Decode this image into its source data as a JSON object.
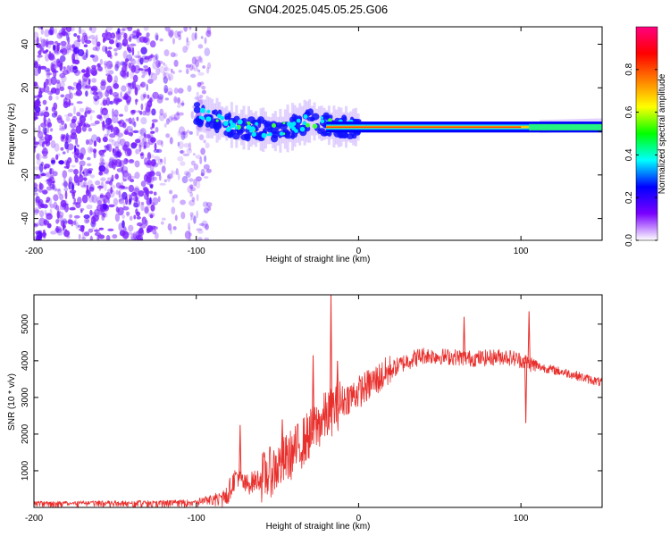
{
  "figure": {
    "title": "GN04.2025.045.05.25.G06"
  },
  "chart_data": [
    {
      "type": "heatmap",
      "title": "GN04.2025.045.05.25.G06",
      "xlabel": "Height of straight line (km)",
      "ylabel": "Frequency (Hz)",
      "xlim": [
        -200,
        150
      ],
      "ylim": [
        -50,
        48
      ],
      "x_ticks": [
        -200,
        -100,
        0,
        100
      ],
      "y_ticks": [
        -40,
        -20,
        0,
        20,
        40
      ],
      "colorbar": {
        "label": "Normalized spectral amplitude",
        "range": [
          0,
          1
        ],
        "ticks": [
          0.0,
          0.2,
          0.4,
          0.6,
          0.8
        ],
        "colormap": [
          "#ffffff",
          "#7a00ff",
          "#0000ff",
          "#00ffff",
          "#00ff00",
          "#ffff00",
          "#ff7f00",
          "#ff0000",
          "#ff0080"
        ]
      },
      "structure": {
        "noise_region_x": [
          -200,
          -100
        ],
        "noise_color": "#7a1fff",
        "signal_band": [
          {
            "x": -100,
            "freq": 8
          },
          {
            "x": -75,
            "freq": 2
          },
          {
            "x": -50,
            "freq": 0
          },
          {
            "x": -30,
            "freq": 5
          },
          {
            "x": -15,
            "freq": 2
          },
          {
            "x": 0,
            "freq": 2
          },
          {
            "x": 100,
            "freq": 2
          },
          {
            "x": 150,
            "freq": 3
          }
        ],
        "band_peak_color": "#ff0000"
      },
      "grid": false
    },
    {
      "type": "line",
      "xlabel": "Height of straight line (km)",
      "ylabel": "SNR (10 * v/v)",
      "xlim": [
        -200,
        150
      ],
      "ylim": [
        0,
        5800
      ],
      "x_ticks": [
        -200,
        -100,
        0,
        100
      ],
      "y_ticks": [
        1000,
        2000,
        3000,
        4000,
        5000
      ],
      "series_color": "#e8302d",
      "points": [
        {
          "x": -200,
          "y": 130
        },
        {
          "x": -150,
          "y": 140
        },
        {
          "x": -100,
          "y": 160
        },
        {
          "x": -95,
          "y": 200
        },
        {
          "x": -90,
          "y": 260
        },
        {
          "x": -80,
          "y": 450
        },
        {
          "x": -75,
          "y": 900
        },
        {
          "x": -70,
          "y": 600
        },
        {
          "x": -60,
          "y": 800
        },
        {
          "x": -50,
          "y": 1100
        },
        {
          "x": -40,
          "y": 1500
        },
        {
          "x": -30,
          "y": 2000
        },
        {
          "x": -20,
          "y": 2500
        },
        {
          "x": -10,
          "y": 2900
        },
        {
          "x": 0,
          "y": 3150
        },
        {
          "x": 10,
          "y": 3450
        },
        {
          "x": 20,
          "y": 3750
        },
        {
          "x": 30,
          "y": 4000
        },
        {
          "x": 40,
          "y": 4150
        },
        {
          "x": 50,
          "y": 4120
        },
        {
          "x": 60,
          "y": 4100
        },
        {
          "x": 70,
          "y": 4060
        },
        {
          "x": 80,
          "y": 4080
        },
        {
          "x": 90,
          "y": 4120
        },
        {
          "x": 100,
          "y": 4020
        },
        {
          "x": 110,
          "y": 3850
        },
        {
          "x": 120,
          "y": 3750
        },
        {
          "x": 130,
          "y": 3650
        },
        {
          "x": 140,
          "y": 3520
        },
        {
          "x": 150,
          "y": 3400
        }
      ],
      "spikes": [
        {
          "x": -73,
          "y": 2250
        },
        {
          "x": -47,
          "y": 2400
        },
        {
          "x": -28,
          "y": 4150
        },
        {
          "x": -17,
          "y": 5800
        },
        {
          "x": -13,
          "y": 4000
        },
        {
          "x": 65,
          "y": 5200
        },
        {
          "x": 105,
          "y": 5350
        },
        {
          "x": 103,
          "y": 2300
        }
      ],
      "grid": false
    }
  ]
}
